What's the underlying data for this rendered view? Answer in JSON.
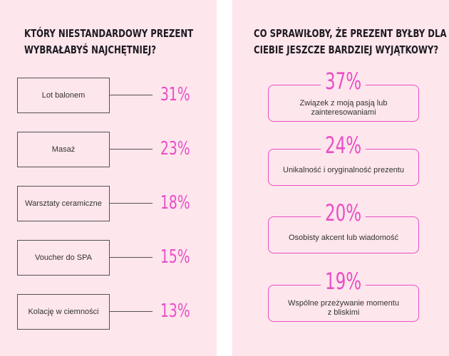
{
  "left": {
    "title_lines": [
      "KTÓRY NIESTANDARDOWY PREZENT",
      "WYBRAŁABYŚ NAJCHĘTNIEJ?"
    ]
  },
  "right": {
    "title_lines": [
      "CO SPRAWIŁOBY, ŻE PREZENT BYŁBY DLA",
      "CIEBIE JESZCZE BARDZIEJ WYJĄTKOWY?"
    ]
  },
  "chart_data": [
    {
      "type": "table",
      "title": "KTÓRY NIESTANDARDOWY PREZENT WYBRAŁABYŚ NAJCHĘTNIEJ?",
      "categories": [
        "Lot balonem",
        "Masaż",
        "Warsztaty ceramiczne",
        "Voucher do SPA",
        "Kolację w ciemności"
      ],
      "values": [
        31,
        23,
        18,
        15,
        13
      ],
      "labels": [
        "31%",
        "23%",
        "18%",
        "15%",
        "13%"
      ]
    },
    {
      "type": "table",
      "title": "CO SPRAWIŁOBY, ŻE PREZENT BYŁBY DLA CIEBIE JESZCZE BARDZIEJ WYJĄTKOWY?",
      "categories": [
        [
          "Związek z moją pasją lub",
          "zainteresowaniami"
        ],
        [
          "Unikalność i oryginalność prezentu"
        ],
        [
          "Osobisty akcent lub wiadomość"
        ],
        [
          "Wspólne przeżywanie momentu",
          "z bliskimi"
        ]
      ],
      "values": [
        37,
        24,
        20,
        19
      ],
      "labels": [
        "37%",
        "24%",
        "20%",
        "19%"
      ]
    }
  ],
  "colors": {
    "panel": "#fde6ec",
    "accent": "#e94ec7",
    "line": "#555055"
  }
}
